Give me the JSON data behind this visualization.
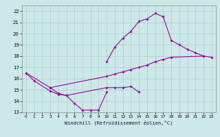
{
  "xlabel": "Windchill (Refroidissement éolien,°C)",
  "bg_color": "#cce8e8",
  "line_color": "#990099",
  "grid_color": "#aacccc",
  "xlim": [
    -0.5,
    23.5
  ],
  "ylim": [
    13,
    22.5
  ],
  "xticks": [
    0,
    1,
    2,
    3,
    4,
    5,
    6,
    7,
    8,
    9,
    10,
    11,
    12,
    13,
    14,
    15,
    16,
    17,
    18,
    19,
    20,
    21,
    22,
    23
  ],
  "yticks": [
    13,
    14,
    15,
    16,
    17,
    18,
    19,
    20,
    21,
    22
  ],
  "series": [
    {
      "comment": "line going down then up: 0->1->3->4->5->6->7->8->9->10",
      "x": [
        0,
        1,
        3,
        4,
        5,
        6,
        7,
        8,
        9,
        10
      ],
      "y": [
        16.5,
        15.8,
        14.9,
        14.6,
        14.5,
        13.8,
        13.2,
        13.2,
        13.2,
        14.8
      ]
    },
    {
      "comment": "second line: 3->4->5 then 10->11->12->13->14",
      "x": [
        3,
        4,
        5,
        10,
        11,
        12,
        13,
        14
      ],
      "y": [
        15.2,
        14.7,
        14.5,
        15.2,
        15.2,
        15.2,
        15.3,
        14.8
      ]
    },
    {
      "x": [
        10,
        11,
        12,
        13,
        14,
        15,
        16,
        17,
        18,
        19,
        20,
        21,
        22
      ],
      "y": [
        17.5,
        18.8,
        19.6,
        20.2,
        21.1,
        21.3,
        21.8,
        21.5,
        19.4,
        19.0,
        18.6,
        18.3,
        18.0
      ]
    },
    {
      "x": [
        0,
        3,
        10,
        11,
        12,
        13,
        14,
        15,
        16,
        17,
        18,
        22,
        23
      ],
      "y": [
        16.5,
        15.2,
        16.2,
        16.4,
        16.6,
        16.8,
        17.0,
        17.2,
        17.5,
        17.7,
        17.9,
        18.0,
        17.9
      ]
    }
  ]
}
